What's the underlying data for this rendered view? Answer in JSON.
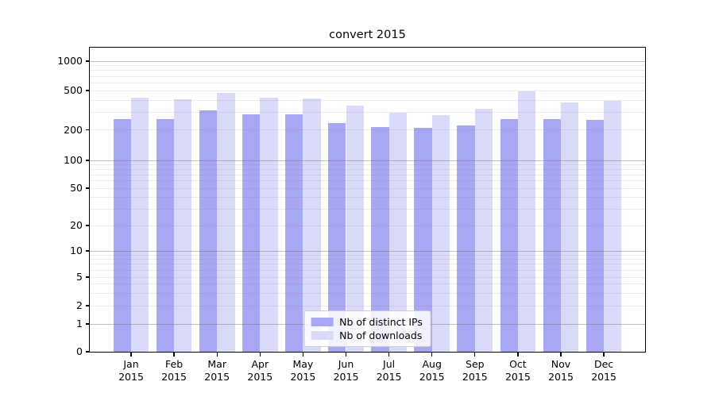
{
  "chart_data": {
    "type": "bar",
    "title": "convert 2015",
    "categories": [
      "Jan",
      "Feb",
      "Mar",
      "Apr",
      "May",
      "Jun",
      "Jul",
      "Aug",
      "Sep",
      "Oct",
      "Nov",
      "Dec"
    ],
    "category_sublabel": "2015",
    "series": [
      {
        "name": "Nb of distinct IPs",
        "color": "#a7a7f3",
        "values": [
          255,
          255,
          317,
          287,
          287,
          234,
          213,
          209,
          223,
          255,
          255,
          254
        ]
      },
      {
        "name": "Nb of downloads",
        "color": "#d9d9f8",
        "values": [
          426,
          408,
          476,
          426,
          413,
          350,
          296,
          280,
          328,
          490,
          377,
          393
        ]
      }
    ],
    "y_axis": {
      "scale": "symlog",
      "tick_values": [
        0,
        1,
        2,
        5,
        10,
        20,
        50,
        100,
        200,
        500,
        1000
      ]
    },
    "x_axis": {
      "tick_labels_line1": [
        "Jan",
        "Feb",
        "Mar",
        "Apr",
        "May",
        "Jun",
        "Jul",
        "Aug",
        "Sep",
        "Oct",
        "Nov",
        "Dec"
      ],
      "tick_labels_line2": [
        "2015",
        "2015",
        "2015",
        "2015",
        "2015",
        "2015",
        "2015",
        "2015",
        "2015",
        "2015",
        "2015",
        "2015"
      ]
    },
    "grid": {
      "on": true
    },
    "legend": {
      "position": "lower center",
      "entries": [
        "Nb of distinct IPs",
        "Nb of downloads"
      ]
    },
    "colors": {
      "distinct_ips": "#a7a7f3",
      "downloads": "#d9d9f8",
      "grid_major": "rgba(110,110,110,0.45)",
      "grid_minor": "rgba(130,130,130,0.16)",
      "axis": "#000000"
    }
  }
}
